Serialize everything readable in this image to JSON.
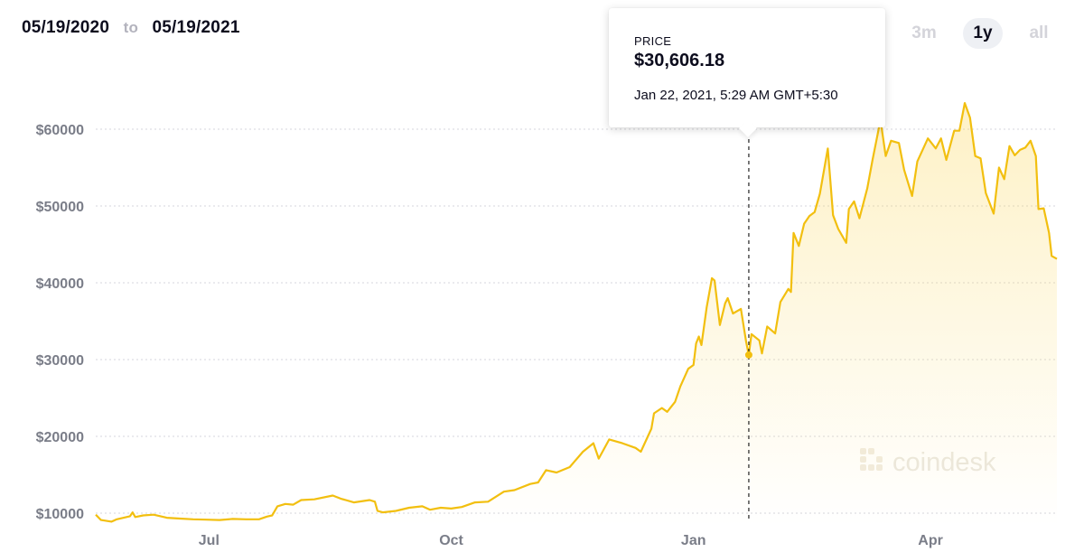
{
  "header": {
    "start_date": "05/19/2020",
    "separator": "to",
    "end_date": "05/19/2021"
  },
  "range_buttons": [
    {
      "label": "3m",
      "active": false
    },
    {
      "label": "1y",
      "active": true
    },
    {
      "label": "all",
      "active": false
    }
  ],
  "tooltip": {
    "label": "PRICE",
    "value": "$30,606.18",
    "date": "Jan 22, 2021, 5:29 AM GMT+5:30"
  },
  "watermark": "coindesk",
  "colors": {
    "line": "#f2bf0f",
    "fill": "#fbd75c",
    "grid": "#d6d6dc",
    "axis_text": "#7a7d88"
  },
  "chart_data": {
    "type": "area",
    "x_start": "2020-05-19",
    "x_end": "2021-05-19",
    "y_ticks": [
      {
        "value": 10000,
        "label": "$10000"
      },
      {
        "value": 20000,
        "label": "$20000"
      },
      {
        "value": 30000,
        "label": "$30000"
      },
      {
        "value": 40000,
        "label": "$40000"
      },
      {
        "value": 50000,
        "label": "$50000"
      },
      {
        "value": 60000,
        "label": "$60000"
      }
    ],
    "x_ticks": [
      {
        "date": "2020-07-01",
        "label": "Jul"
      },
      {
        "date": "2020-10-01",
        "label": "Oct"
      },
      {
        "date": "2021-01-01",
        "label": "Jan"
      },
      {
        "date": "2021-04-01",
        "label": "Apr"
      }
    ],
    "ylim": [
      9500,
      64000
    ],
    "grid": "horizontal dotted",
    "highlight": {
      "date": "2021-01-22",
      "value": 30606.18
    },
    "series": [
      {
        "points": [
          [
            "2020-05-19",
            9800
          ],
          [
            "2020-05-21",
            9100
          ],
          [
            "2020-05-25",
            8900
          ],
          [
            "2020-05-27",
            9200
          ],
          [
            "2020-06-01",
            9600
          ],
          [
            "2020-06-02",
            10100
          ],
          [
            "2020-06-03",
            9500
          ],
          [
            "2020-06-06",
            9700
          ],
          [
            "2020-06-10",
            9800
          ],
          [
            "2020-06-15",
            9400
          ],
          [
            "2020-06-20",
            9300
          ],
          [
            "2020-06-25",
            9200
          ],
          [
            "2020-06-30",
            9150
          ],
          [
            "2020-07-05",
            9100
          ],
          [
            "2020-07-10",
            9250
          ],
          [
            "2020-07-15",
            9200
          ],
          [
            "2020-07-20",
            9200
          ],
          [
            "2020-07-23",
            9550
          ],
          [
            "2020-07-25",
            9700
          ],
          [
            "2020-07-27",
            10900
          ],
          [
            "2020-07-30",
            11200
          ],
          [
            "2020-08-02",
            11100
          ],
          [
            "2020-08-05",
            11700
          ],
          [
            "2020-08-10",
            11800
          ],
          [
            "2020-08-17",
            12300
          ],
          [
            "2020-08-20",
            11900
          ],
          [
            "2020-08-25",
            11400
          ],
          [
            "2020-08-31",
            11700
          ],
          [
            "2020-09-02",
            11500
          ],
          [
            "2020-09-03",
            10300
          ],
          [
            "2020-09-05",
            10100
          ],
          [
            "2020-09-10",
            10300
          ],
          [
            "2020-09-15",
            10700
          ],
          [
            "2020-09-20",
            10900
          ],
          [
            "2020-09-23",
            10450
          ],
          [
            "2020-09-27",
            10700
          ],
          [
            "2020-10-01",
            10600
          ],
          [
            "2020-10-05",
            10800
          ],
          [
            "2020-10-10",
            11400
          ],
          [
            "2020-10-15",
            11500
          ],
          [
            "2020-10-21",
            12800
          ],
          [
            "2020-10-25",
            13000
          ],
          [
            "2020-10-31",
            13800
          ],
          [
            "2020-11-03",
            14000
          ],
          [
            "2020-11-06",
            15600
          ],
          [
            "2020-11-10",
            15300
          ],
          [
            "2020-11-15",
            16000
          ],
          [
            "2020-11-20",
            18000
          ],
          [
            "2020-11-24",
            19100
          ],
          [
            "2020-11-26",
            17100
          ],
          [
            "2020-11-30",
            19600
          ],
          [
            "2020-12-05",
            19100
          ],
          [
            "2020-12-10",
            18500
          ],
          [
            "2020-12-12",
            18000
          ],
          [
            "2020-12-16",
            21000
          ],
          [
            "2020-12-17",
            23000
          ],
          [
            "2020-12-20",
            23700
          ],
          [
            "2020-12-22",
            23200
          ],
          [
            "2020-12-25",
            24500
          ],
          [
            "2020-12-27",
            26500
          ],
          [
            "2020-12-30",
            28800
          ],
          [
            "2021-01-01",
            29300
          ],
          [
            "2021-01-02",
            32100
          ],
          [
            "2021-01-03",
            33000
          ],
          [
            "2021-01-04",
            31900
          ],
          [
            "2021-01-06",
            36800
          ],
          [
            "2021-01-08",
            40600
          ],
          [
            "2021-01-09",
            40300
          ],
          [
            "2021-01-11",
            34500
          ],
          [
            "2021-01-13",
            37300
          ],
          [
            "2021-01-14",
            38000
          ],
          [
            "2021-01-16",
            36000
          ],
          [
            "2021-01-19",
            36600
          ],
          [
            "2021-01-21",
            32300
          ],
          [
            "2021-01-22",
            30606
          ],
          [
            "2021-01-23",
            33300
          ],
          [
            "2021-01-26",
            32500
          ],
          [
            "2021-01-27",
            30800
          ],
          [
            "2021-01-29",
            34300
          ],
          [
            "2021-02-01",
            33400
          ],
          [
            "2021-02-03",
            37500
          ],
          [
            "2021-02-06",
            39200
          ],
          [
            "2021-02-07",
            38800
          ],
          [
            "2021-02-08",
            46500
          ],
          [
            "2021-02-10",
            44800
          ],
          [
            "2021-02-12",
            47700
          ],
          [
            "2021-02-14",
            48700
          ],
          [
            "2021-02-16",
            49200
          ],
          [
            "2021-02-18",
            51600
          ],
          [
            "2021-02-21",
            57500
          ],
          [
            "2021-02-23",
            48800
          ],
          [
            "2021-02-25",
            47000
          ],
          [
            "2021-02-28",
            45200
          ],
          [
            "2021-03-01",
            49600
          ],
          [
            "2021-03-03",
            50600
          ],
          [
            "2021-03-05",
            48400
          ],
          [
            "2021-03-08",
            52300
          ],
          [
            "2021-03-10",
            56000
          ],
          [
            "2021-03-13",
            61200
          ],
          [
            "2021-03-15",
            56500
          ],
          [
            "2021-03-17",
            58500
          ],
          [
            "2021-03-20",
            58200
          ],
          [
            "2021-03-22",
            54700
          ],
          [
            "2021-03-25",
            51300
          ],
          [
            "2021-03-27",
            55800
          ],
          [
            "2021-03-31",
            58800
          ],
          [
            "2021-04-03",
            57500
          ],
          [
            "2021-04-05",
            58800
          ],
          [
            "2021-04-07",
            56000
          ],
          [
            "2021-04-10",
            59800
          ],
          [
            "2021-04-12",
            59800
          ],
          [
            "2021-04-14",
            63400
          ],
          [
            "2021-04-16",
            61500
          ],
          [
            "2021-04-18",
            56500
          ],
          [
            "2021-04-20",
            56200
          ],
          [
            "2021-04-22",
            51700
          ],
          [
            "2021-04-25",
            49000
          ],
          [
            "2021-04-27",
            55000
          ],
          [
            "2021-04-29",
            53500
          ],
          [
            "2021-05-01",
            57800
          ],
          [
            "2021-05-03",
            56600
          ],
          [
            "2021-05-05",
            57300
          ],
          [
            "2021-05-07",
            57600
          ],
          [
            "2021-05-09",
            58500
          ],
          [
            "2021-05-11",
            56500
          ],
          [
            "2021-05-12",
            49600
          ],
          [
            "2021-05-14",
            49700
          ],
          [
            "2021-05-16",
            46500
          ],
          [
            "2021-05-17",
            43500
          ],
          [
            "2021-05-19",
            43100
          ]
        ]
      }
    ]
  }
}
